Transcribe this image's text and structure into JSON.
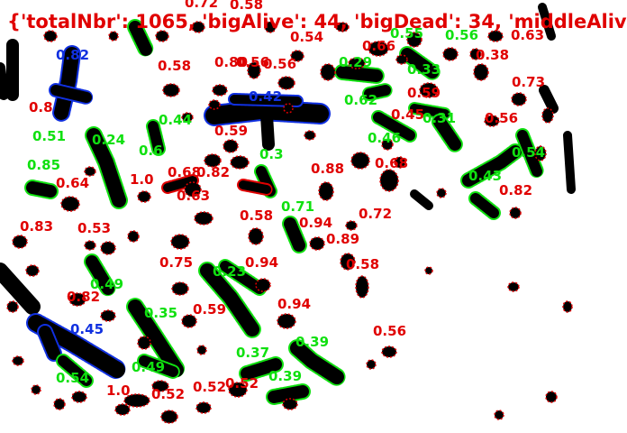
{
  "stats_overlay": {
    "text": "{'totalNbr': 1065, 'bigAlive': 44, 'bigDead': 34, 'middleAliv",
    "color": "#e00000"
  },
  "colors": {
    "dead": "#e00000",
    "alive": "#10e010",
    "blue": "#1030e0",
    "blob": "#000000"
  },
  "labels": [
    {
      "text": "0.72",
      "cls": "dead"
    },
    {
      "text": "0.58",
      "cls": "dead"
    },
    {
      "text": "0.54",
      "cls": "dead"
    },
    {
      "text": "0.66",
      "cls": "dead"
    },
    {
      "text": "0.55",
      "cls": "alive"
    },
    {
      "text": "0.56",
      "cls": "alive"
    },
    {
      "text": "0.63",
      "cls": "dead"
    },
    {
      "text": "0.82",
      "cls": "blue"
    },
    {
      "text": "0.58",
      "cls": "dead"
    },
    {
      "text": "0.80",
      "cls": "dead"
    },
    {
      "text": "0.56",
      "cls": "dead"
    },
    {
      "text": "0.56",
      "cls": "dead"
    },
    {
      "text": "0.29",
      "cls": "alive"
    },
    {
      "text": "0.33",
      "cls": "alive"
    },
    {
      "text": "0.38",
      "cls": "dead"
    },
    {
      "text": "0.73",
      "cls": "dead"
    },
    {
      "text": "0.42",
      "cls": "blue"
    },
    {
      "text": "0.62",
      "cls": "alive"
    },
    {
      "text": "0.59",
      "cls": "dead"
    },
    {
      "text": "0.8",
      "cls": "dead"
    },
    {
      "text": "0.44",
      "cls": "alive"
    },
    {
      "text": "0.45",
      "cls": "dead"
    },
    {
      "text": "0.31",
      "cls": "alive"
    },
    {
      "text": "0.56",
      "cls": "dead"
    },
    {
      "text": "0.59",
      "cls": "dead"
    },
    {
      "text": "0.51",
      "cls": "alive"
    },
    {
      "text": "0.24",
      "cls": "alive"
    },
    {
      "text": "0.46",
      "cls": "alive"
    },
    {
      "text": "0.54",
      "cls": "alive"
    },
    {
      "text": "0.6",
      "cls": "alive"
    },
    {
      "text": "0.3",
      "cls": "alive"
    },
    {
      "text": "0.85",
      "cls": "alive"
    },
    {
      "text": "0.68",
      "cls": "dead"
    },
    {
      "text": "0.82",
      "cls": "dead"
    },
    {
      "text": "0.88",
      "cls": "dead"
    },
    {
      "text": "0.68",
      "cls": "dead"
    },
    {
      "text": "1.0",
      "cls": "dead"
    },
    {
      "text": "0.43",
      "cls": "alive"
    },
    {
      "text": "0.64",
      "cls": "dead"
    },
    {
      "text": "0.82",
      "cls": "dead"
    },
    {
      "text": "0.63",
      "cls": "dead"
    },
    {
      "text": "0.71",
      "cls": "alive"
    },
    {
      "text": "0.58",
      "cls": "dead"
    },
    {
      "text": "0.94",
      "cls": "dead"
    },
    {
      "text": "0.72",
      "cls": "dead"
    },
    {
      "text": "0.83",
      "cls": "dead"
    },
    {
      "text": "0.53",
      "cls": "dead"
    },
    {
      "text": "0.89",
      "cls": "dead"
    },
    {
      "text": "0.75",
      "cls": "dead"
    },
    {
      "text": "0.94",
      "cls": "dead"
    },
    {
      "text": "0.58",
      "cls": "dead"
    },
    {
      "text": "0.23",
      "cls": "alive"
    },
    {
      "text": "0.49",
      "cls": "alive"
    },
    {
      "text": "0.82",
      "cls": "dead"
    },
    {
      "text": "0.35",
      "cls": "alive"
    },
    {
      "text": "0.59",
      "cls": "dead"
    },
    {
      "text": "0.94",
      "cls": "dead"
    },
    {
      "text": "0.45",
      "cls": "blue"
    },
    {
      "text": "0.56",
      "cls": "dead"
    },
    {
      "text": "0.39",
      "cls": "alive"
    },
    {
      "text": "0.37",
      "cls": "alive"
    },
    {
      "text": "0.49",
      "cls": "alive"
    },
    {
      "text": "0.54",
      "cls": "alive"
    },
    {
      "text": "0.39",
      "cls": "alive"
    },
    {
      "text": "1.0",
      "cls": "dead"
    },
    {
      "text": "0.52",
      "cls": "dead"
    },
    {
      "text": "0.52",
      "cls": "dead"
    },
    {
      "text": "0.52",
      "cls": "dead"
    }
  ]
}
